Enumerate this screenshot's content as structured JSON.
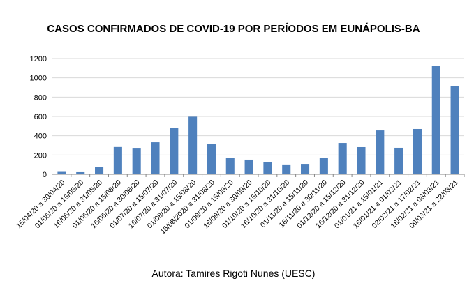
{
  "chart_data": {
    "type": "bar",
    "title": "CASOS CONFIRMADOS DE COVID-19 POR PERÍODOS EM EUNÁPOLIS-BA",
    "caption": "Autora: Tamires Rigoti Nunes (UESC)",
    "xlabel": "",
    "ylabel": "",
    "ylim": [
      0,
      1200
    ],
    "yticks": [
      0,
      200,
      400,
      600,
      800,
      1000,
      1200
    ],
    "grid": true,
    "legend": "none",
    "bar_color": "#4f81bd",
    "categories": [
      "15/04/20 a 30/04/20",
      "01/05/20 a 15/05/20",
      "16/05/20 a 31/05/20",
      "01/06/20 a 15/06/20",
      "16/06/20 a 30/06/20",
      "01/07/20 a 15/07/20",
      "16/07/20 a 31/07/20",
      "01/08/20 a 15/08/20",
      "16/08/2020 a 31/08/20",
      "01/09/20 a 15/09/20",
      "16/09/20 a 30/09/20",
      "01/10/20 a 15/10/20",
      "16/10/20 a 31/10/20",
      "01/11/20 a 15/11/20",
      "16/11/20 a 30/11/20",
      "01/12/20 a 15/12/20",
      "16/12/20 a 31/12/20",
      "01/01/21 a 15/01/21",
      "16/01/21 a 01/02/21",
      "02/02/21 a 17/02/21",
      "18/02/21 a 08/03/21",
      "09/03/21 a 22/03/21"
    ],
    "values": [
      25,
      22,
      78,
      283,
      267,
      332,
      478,
      597,
      318,
      168,
      152,
      130,
      102,
      108,
      168,
      325,
      282,
      455,
      275,
      470,
      1125,
      915
    ]
  }
}
